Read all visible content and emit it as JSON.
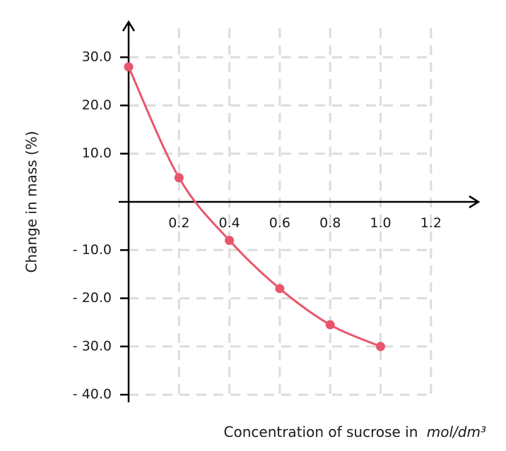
{
  "chart_data": {
    "type": "line",
    "xlabel": "Concentration of sucrose in",
    "xlabel_unit": "mol/dm³",
    "ylabel": "Change in mass (%)",
    "xlim": [
      0,
      1.4
    ],
    "ylim": [
      -40,
      38
    ],
    "x_ticks": [
      0.2,
      0.4,
      0.6,
      0.8,
      1.0,
      1.2
    ],
    "x_tick_labels": [
      "0.2",
      "0.4",
      "0.6",
      "0.8",
      "1.0",
      "1.2"
    ],
    "y_ticks": [
      30,
      20,
      10,
      -10,
      -20,
      -30,
      -40
    ],
    "y_tick_labels": [
      "30.0",
      "20.0",
      "10.0",
      "- 10.0",
      "- 20.0",
      "- 30.0",
      "- 40.0"
    ],
    "grid": true,
    "series": [
      {
        "color": "#e8566b",
        "x": [
          0.0,
          0.2,
          0.4,
          0.6,
          0.8,
          1.0
        ],
        "y": [
          28,
          5,
          -8,
          -18,
          -25.5,
          -30
        ]
      }
    ]
  }
}
